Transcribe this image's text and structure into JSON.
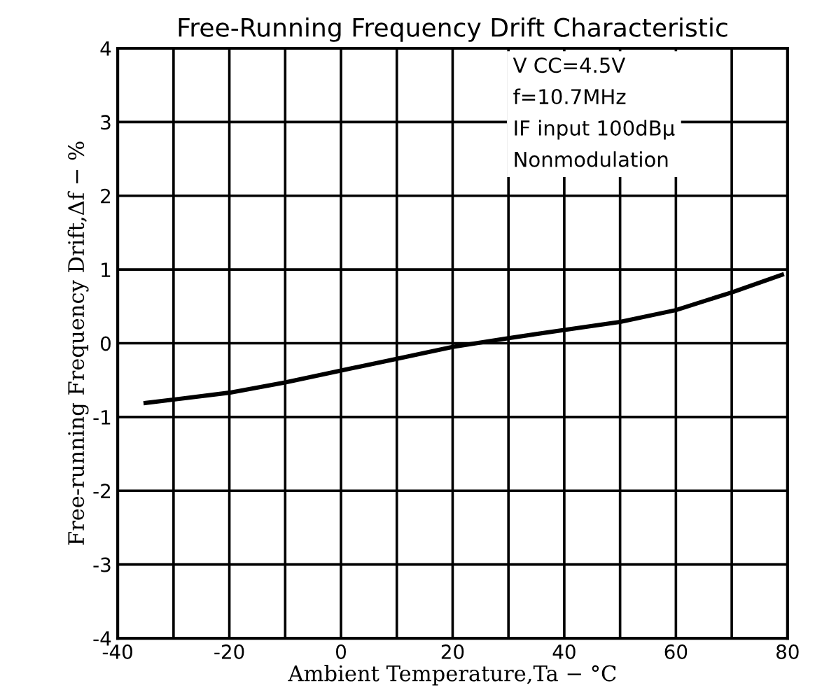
{
  "chart_data": {
    "type": "line",
    "title": "Free-Running Frequency Drift Characteristic",
    "xlabel": "Ambient Temperature,Ta − °C",
    "ylabel": "Free-running Frequency Drift,Δf − %",
    "series": [
      {
        "color": "#000000",
        "x": [
          -35,
          -20,
          -10,
          0,
          10,
          20,
          30,
          40,
          50,
          60,
          70,
          79
        ],
        "values": [
          -0.81,
          -0.67,
          -0.53,
          -0.37,
          -0.21,
          -0.05,
          0.07,
          0.18,
          0.29,
          0.45,
          0.69,
          0.93
        ]
      }
    ],
    "xlim": [
      -40,
      80
    ],
    "ylim": [
      -4,
      4
    ],
    "xticks": [
      -40,
      {
        "value": -30,
        "label": null
      },
      -20,
      {
        "value": -10,
        "label": null
      },
      0,
      {
        "value": 10,
        "label": null
      },
      20,
      {
        "value": 30,
        "label": null
      },
      40,
      {
        "value": 50,
        "label": null
      },
      60,
      {
        "value": 70,
        "label": null
      },
      80
    ],
    "yticks": [
      -4,
      -3,
      -2,
      -1,
      0,
      1,
      2,
      3,
      4
    ],
    "grid": true,
    "marker": "none",
    "line_style": "solid",
    "legend": false,
    "annotations": [
      "V CC=4.5V",
      "f=10.7MHz",
      "IF input 100dBμ",
      "Nonmodulation"
    ]
  }
}
